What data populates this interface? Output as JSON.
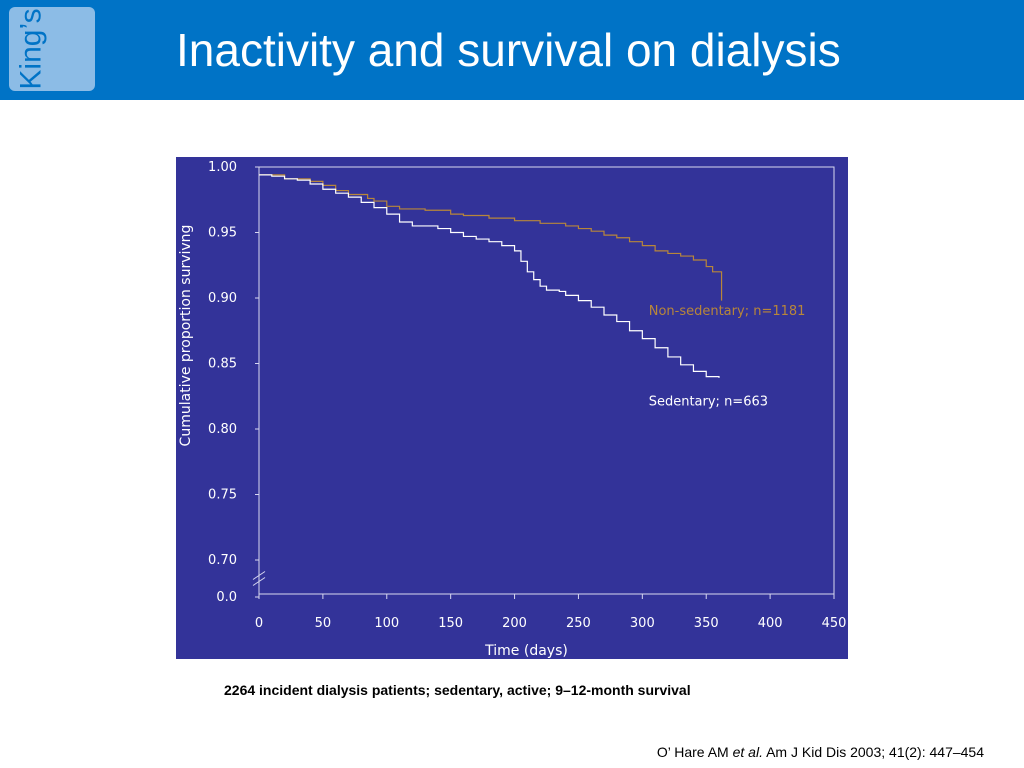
{
  "header": {
    "logo_text": "King’s",
    "title": "Inactivity and survival on dialysis"
  },
  "colors": {
    "header_bg": "#0073c6",
    "logo_bg": "#8cbce6",
    "chart_bg": "#333399",
    "axis": "#d8d8f0",
    "non_sedentary": "#b8863a",
    "sedentary": "#ffffff"
  },
  "chart_data": {
    "type": "line",
    "title": "",
    "xlabel": "Time (days)",
    "ylabel": "Cumulative proportion survivng",
    "xlim": [
      0,
      450
    ],
    "ylim": [
      0.7,
      1.0
    ],
    "x_ticks": [
      0,
      50,
      100,
      150,
      200,
      250,
      300,
      350,
      400,
      450
    ],
    "y_ticks": [
      "1.00",
      "0.95",
      "0.90",
      "0.85",
      "0.80",
      "0.75",
      "0.70",
      "0.0"
    ],
    "axis_break": true,
    "grid": false,
    "series": [
      {
        "name": "Non-sedentary; n=1181",
        "color": "#b8863a",
        "points": [
          [
            0,
            0.994
          ],
          [
            10,
            0.994
          ],
          [
            20,
            0.991
          ],
          [
            40,
            0.989
          ],
          [
            50,
            0.986
          ],
          [
            60,
            0.982
          ],
          [
            70,
            0.979
          ],
          [
            85,
            0.976
          ],
          [
            90,
            0.974
          ],
          [
            100,
            0.97
          ],
          [
            110,
            0.968
          ],
          [
            130,
            0.967
          ],
          [
            150,
            0.964
          ],
          [
            160,
            0.963
          ],
          [
            180,
            0.961
          ],
          [
            200,
            0.959
          ],
          [
            220,
            0.957
          ],
          [
            240,
            0.955
          ],
          [
            250,
            0.953
          ],
          [
            260,
            0.951
          ],
          [
            270,
            0.948
          ],
          [
            280,
            0.946
          ],
          [
            290,
            0.943
          ],
          [
            300,
            0.94
          ],
          [
            310,
            0.936
          ],
          [
            320,
            0.934
          ],
          [
            330,
            0.932
          ],
          [
            340,
            0.929
          ],
          [
            350,
            0.924
          ],
          [
            355,
            0.92
          ],
          [
            362,
            0.918
          ],
          [
            362,
            0.898
          ]
        ]
      },
      {
        "name": "Sedentary; n=663",
        "color": "#ffffff",
        "points": [
          [
            0,
            0.994
          ],
          [
            10,
            0.993
          ],
          [
            20,
            0.991
          ],
          [
            30,
            0.99
          ],
          [
            40,
            0.987
          ],
          [
            50,
            0.983
          ],
          [
            60,
            0.98
          ],
          [
            70,
            0.977
          ],
          [
            80,
            0.973
          ],
          [
            90,
            0.969
          ],
          [
            100,
            0.964
          ],
          [
            110,
            0.958
          ],
          [
            120,
            0.955
          ],
          [
            130,
            0.955
          ],
          [
            140,
            0.953
          ],
          [
            150,
            0.95
          ],
          [
            160,
            0.947
          ],
          [
            170,
            0.945
          ],
          [
            180,
            0.943
          ],
          [
            190,
            0.94
          ],
          [
            200,
            0.936
          ],
          [
            205,
            0.928
          ],
          [
            210,
            0.92
          ],
          [
            215,
            0.914
          ],
          [
            220,
            0.909
          ],
          [
            225,
            0.906
          ],
          [
            235,
            0.905
          ],
          [
            240,
            0.902
          ],
          [
            250,
            0.898
          ],
          [
            260,
            0.893
          ],
          [
            270,
            0.887
          ],
          [
            280,
            0.882
          ],
          [
            290,
            0.875
          ],
          [
            300,
            0.869
          ],
          [
            310,
            0.862
          ],
          [
            320,
            0.855
          ],
          [
            330,
            0.849
          ],
          [
            340,
            0.844
          ],
          [
            350,
            0.84
          ],
          [
            360,
            0.839
          ]
        ]
      }
    ],
    "annotations": [
      {
        "text": "Non-sedentary; n=1181",
        "x": 305,
        "y": 0.887
      },
      {
        "text": "Sedentary; n=663",
        "x": 305,
        "y": 0.818
      }
    ]
  },
  "caption": "2264 incident dialysis patients; sedentary, active; 9–12-month survival",
  "citation": {
    "author": "O’ Hare AM",
    "etal": "et al.",
    "rest": "Am J Kid Dis 2003; 41(2): 447–454"
  }
}
